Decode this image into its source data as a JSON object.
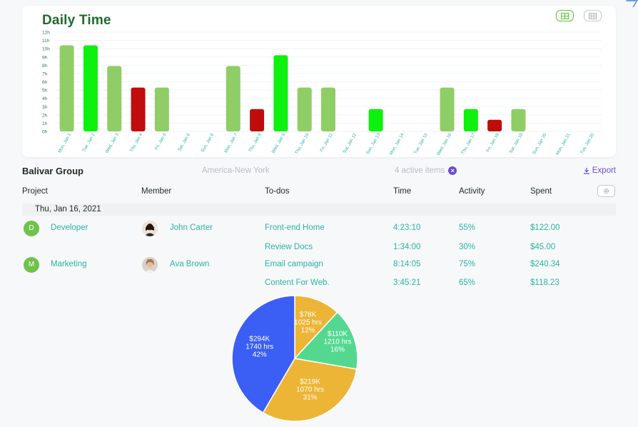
{
  "daily_time": {
    "title": "Daily Time",
    "view_buttons": [
      {
        "name": "grid-view",
        "active": true
      },
      {
        "name": "list-view",
        "active": false
      }
    ]
  },
  "chart_data": {
    "type": "bar",
    "y_ticks": [
      "0h",
      "1h",
      "2h",
      "3h",
      "4h",
      "5h",
      "6h",
      "7h",
      "8h",
      "9h",
      "10h",
      "11h",
      "12h"
    ],
    "ylim": [
      0,
      12
    ],
    "categories": [
      "Mon, Jan 1",
      "Tue, Jan 2",
      "Wed, Jan 3",
      "Thu, Jan 4",
      "Fri, Jan 5",
      "Sat, Jan 6",
      "Sun, Jan 6",
      "Mon, Jan 7",
      "Thu, Jan 8",
      "Wed, Jan 9",
      "Thu, Jan 10",
      "Fri, Jan 11",
      "Sat, Jan 12",
      "Sun, Jan 13",
      "Mon, Jan 14",
      "Tue, Jan 15",
      "Wed, Jan 16",
      "Thu, Jan 17",
      "Fri, Jan 18",
      "Sat, Jan 19",
      "Sun, Jan 20",
      "Mon, Jan 21",
      "Tue, Jan 20"
    ],
    "values": [
      10.4,
      10.4,
      7.9,
      5.3,
      5.3,
      0,
      0,
      7.9,
      2.7,
      9.2,
      5.3,
      5.3,
      0,
      2.7,
      0,
      0,
      5.3,
      2.7,
      1.4,
      2.7,
      0,
      0,
      0
    ],
    "bar_status": [
      "normal",
      "high",
      "normal",
      "low",
      "normal",
      "none",
      "none",
      "normal",
      "low",
      "high",
      "normal",
      "normal",
      "none",
      "high",
      "none",
      "none",
      "normal",
      "high",
      "low",
      "normal",
      "none",
      "none",
      "none"
    ],
    "colors": {
      "normal": "#8fce66",
      "high": "#0ef00e",
      "low": "#c00c0c"
    }
  },
  "group": {
    "name": "Balivar Group",
    "timezone": "America-New York",
    "active_items": "4 active items",
    "export_label": "Export"
  },
  "table": {
    "headers": {
      "project": "Project",
      "member": "Member",
      "todos": "To-dos",
      "time": "Time",
      "activity": "Activity",
      "spent": "Spent"
    },
    "date": "Thu, Jan 16, 2021",
    "rows": [
      {
        "project_initial": "D",
        "project": "Developer",
        "member": "John Carter",
        "todo": "Front-end Home",
        "time": "4:23:10",
        "activity": "55%",
        "spent": "$122.00"
      },
      {
        "project_initial": "",
        "project": "",
        "member": "",
        "todo": "Review Docs",
        "time": "1:34:00",
        "activity": "30%",
        "spent": "$45.00"
      },
      {
        "project_initial": "M",
        "project": "Marketing",
        "member": "Ava Brown",
        "todo": "Email campaign",
        "time": "8:14:05",
        "activity": "75%",
        "spent": "$240.34"
      },
      {
        "project_initial": "",
        "project": "",
        "member": "",
        "todo": "Content For Web.",
        "time": "3:45:21",
        "activity": "65%",
        "spent": "$118.23"
      }
    ]
  },
  "pie": {
    "slices": [
      {
        "amount": "$78K",
        "hours": "1025 hrs",
        "percent": "12%",
        "value": 12,
        "color": "#ecb535"
      },
      {
        "amount": "$110K",
        "hours": "1210 hrs",
        "percent": "16%",
        "value": 16,
        "color": "#54d890"
      },
      {
        "amount": "$219K",
        "hours": "1070 hrs",
        "percent": "31%",
        "value": 31,
        "color": "#ecb535"
      },
      {
        "amount": "$294K",
        "hours": "1740 hrs",
        "percent": "42%",
        "value": 42,
        "color": "#3b5ef5"
      }
    ]
  }
}
